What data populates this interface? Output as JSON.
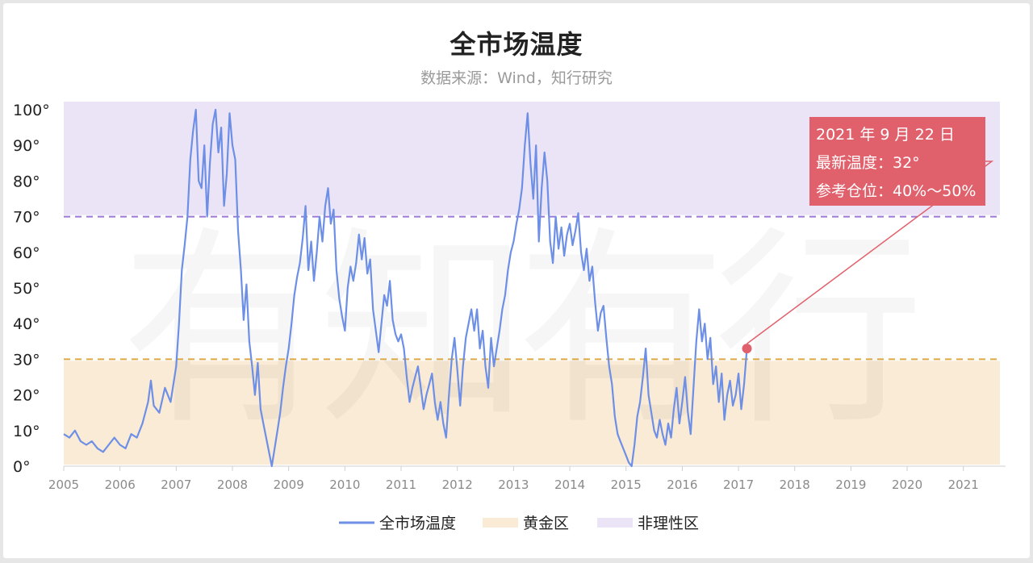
{
  "title": "全市场温度",
  "subtitle": "数据来源：Wind，知行研究",
  "colors": {
    "line": "#6d8fe6",
    "golden_fill": "#faebd6",
    "irrational_fill": "#ebe4f7",
    "line_70": "#9b78d6",
    "line_30": "#e0a640",
    "annotation": "#e0616c"
  },
  "annotation": {
    "date": "2021 年 9 月 22 日",
    "latest": "最新温度：32°",
    "position": "参考仓位：40%～50%"
  },
  "legend": [
    {
      "label": "全市场温度",
      "color": "#6d8fe6",
      "kind": "line"
    },
    {
      "label": "黄金区",
      "color": "#faebd6",
      "kind": "box"
    },
    {
      "label": "非理性区",
      "color": "#ebe4f7",
      "kind": "box"
    }
  ],
  "chart_data": {
    "type": "line",
    "y_ticks": [
      "0°",
      "10°",
      "20°",
      "30°",
      "40°",
      "50°",
      "60°",
      "70°",
      "80°",
      "90°",
      "100°"
    ],
    "ylim": [
      0,
      100
    ],
    "x_ticks": [
      "2005",
      "2006",
      "2007",
      "2008",
      "2009",
      "2010",
      "2011",
      "2012",
      "2013",
      "2014",
      "2015",
      "2016",
      "2017",
      "2018",
      "2019",
      "2020",
      "2021"
    ],
    "xlim": [
      2005,
      2021.75
    ],
    "zones": [
      {
        "name": "黄金区",
        "from": 0,
        "to": 30
      },
      {
        "name": "非理性区",
        "from": 70,
        "to": 100
      }
    ],
    "series": [
      {
        "name": "全市场温度",
        "points": [
          [
            2005.0,
            9
          ],
          [
            2005.1,
            8
          ],
          [
            2005.2,
            10
          ],
          [
            2005.3,
            7
          ],
          [
            2005.4,
            6
          ],
          [
            2005.5,
            7
          ],
          [
            2005.6,
            5
          ],
          [
            2005.7,
            4
          ],
          [
            2005.8,
            6
          ],
          [
            2005.9,
            8
          ],
          [
            2006.0,
            6
          ],
          [
            2006.1,
            5
          ],
          [
            2006.2,
            9
          ],
          [
            2006.3,
            8
          ],
          [
            2006.4,
            12
          ],
          [
            2006.5,
            18
          ],
          [
            2006.55,
            24
          ],
          [
            2006.6,
            17
          ],
          [
            2006.7,
            15
          ],
          [
            2006.8,
            22
          ],
          [
            2006.9,
            18
          ],
          [
            2007.0,
            28
          ],
          [
            2007.05,
            40
          ],
          [
            2007.1,
            55
          ],
          [
            2007.15,
            62
          ],
          [
            2007.2,
            70
          ],
          [
            2007.25,
            86
          ],
          [
            2007.3,
            94
          ],
          [
            2007.35,
            100
          ],
          [
            2007.4,
            80
          ],
          [
            2007.45,
            78
          ],
          [
            2007.5,
            90
          ],
          [
            2007.55,
            70
          ],
          [
            2007.6,
            85
          ],
          [
            2007.65,
            96
          ],
          [
            2007.7,
            100
          ],
          [
            2007.75,
            88
          ],
          [
            2007.8,
            95
          ],
          [
            2007.85,
            73
          ],
          [
            2007.9,
            82
          ],
          [
            2007.95,
            99
          ],
          [
            2008.0,
            90
          ],
          [
            2008.05,
            86
          ],
          [
            2008.1,
            66
          ],
          [
            2008.15,
            55
          ],
          [
            2008.2,
            41
          ],
          [
            2008.25,
            51
          ],
          [
            2008.3,
            35
          ],
          [
            2008.35,
            28
          ],
          [
            2008.4,
            20
          ],
          [
            2008.45,
            29
          ],
          [
            2008.5,
            16
          ],
          [
            2008.55,
            12
          ],
          [
            2008.6,
            8
          ],
          [
            2008.65,
            4
          ],
          [
            2008.7,
            0
          ],
          [
            2008.75,
            5
          ],
          [
            2008.8,
            10
          ],
          [
            2008.85,
            15
          ],
          [
            2008.9,
            22
          ],
          [
            2008.95,
            28
          ],
          [
            2009.0,
            33
          ],
          [
            2009.05,
            40
          ],
          [
            2009.1,
            48
          ],
          [
            2009.15,
            53
          ],
          [
            2009.2,
            57
          ],
          [
            2009.25,
            64
          ],
          [
            2009.3,
            73
          ],
          [
            2009.35,
            55
          ],
          [
            2009.4,
            63
          ],
          [
            2009.45,
            52
          ],
          [
            2009.5,
            60
          ],
          [
            2009.55,
            70
          ],
          [
            2009.6,
            63
          ],
          [
            2009.65,
            73
          ],
          [
            2009.7,
            78
          ],
          [
            2009.75,
            68
          ],
          [
            2009.8,
            72
          ],
          [
            2009.85,
            55
          ],
          [
            2009.9,
            47
          ],
          [
            2009.95,
            42
          ],
          [
            2010.0,
            38
          ],
          [
            2010.05,
            50
          ],
          [
            2010.1,
            56
          ],
          [
            2010.15,
            52
          ],
          [
            2010.2,
            57
          ],
          [
            2010.25,
            65
          ],
          [
            2010.3,
            58
          ],
          [
            2010.35,
            64
          ],
          [
            2010.4,
            54
          ],
          [
            2010.45,
            58
          ],
          [
            2010.5,
            44
          ],
          [
            2010.55,
            38
          ],
          [
            2010.6,
            32
          ],
          [
            2010.65,
            40
          ],
          [
            2010.7,
            48
          ],
          [
            2010.75,
            45
          ],
          [
            2010.8,
            52
          ],
          [
            2010.85,
            41
          ],
          [
            2010.9,
            37
          ],
          [
            2010.95,
            35
          ],
          [
            2011.0,
            37
          ],
          [
            2011.05,
            33
          ],
          [
            2011.1,
            25
          ],
          [
            2011.15,
            18
          ],
          [
            2011.2,
            22
          ],
          [
            2011.25,
            25
          ],
          [
            2011.3,
            28
          ],
          [
            2011.35,
            22
          ],
          [
            2011.4,
            16
          ],
          [
            2011.45,
            20
          ],
          [
            2011.5,
            23
          ],
          [
            2011.55,
            26
          ],
          [
            2011.6,
            18
          ],
          [
            2011.65,
            13
          ],
          [
            2011.7,
            18
          ],
          [
            2011.75,
            12
          ],
          [
            2011.8,
            8
          ],
          [
            2011.85,
            20
          ],
          [
            2011.9,
            30
          ],
          [
            2011.95,
            36
          ],
          [
            2012.0,
            27
          ],
          [
            2012.05,
            17
          ],
          [
            2012.1,
            28
          ],
          [
            2012.15,
            36
          ],
          [
            2012.2,
            40
          ],
          [
            2012.25,
            44
          ],
          [
            2012.3,
            38
          ],
          [
            2012.35,
            44
          ],
          [
            2012.4,
            33
          ],
          [
            2012.45,
            38
          ],
          [
            2012.5,
            28
          ],
          [
            2012.55,
            22
          ],
          [
            2012.6,
            36
          ],
          [
            2012.65,
            28
          ],
          [
            2012.7,
            33
          ],
          [
            2012.75,
            38
          ],
          [
            2012.8,
            44
          ],
          [
            2012.85,
            48
          ],
          [
            2012.9,
            55
          ],
          [
            2012.95,
            60
          ],
          [
            2013.0,
            63
          ],
          [
            2013.05,
            68
          ],
          [
            2013.1,
            72
          ],
          [
            2013.15,
            78
          ],
          [
            2013.2,
            90
          ],
          [
            2013.25,
            99
          ],
          [
            2013.3,
            85
          ],
          [
            2013.35,
            75
          ],
          [
            2013.4,
            90
          ],
          [
            2013.45,
            63
          ],
          [
            2013.5,
            78
          ],
          [
            2013.55,
            88
          ],
          [
            2013.6,
            80
          ],
          [
            2013.65,
            63
          ],
          [
            2013.7,
            57
          ],
          [
            2013.75,
            70
          ],
          [
            2013.8,
            61
          ],
          [
            2013.85,
            67
          ],
          [
            2013.9,
            59
          ],
          [
            2013.95,
            65
          ],
          [
            2014.0,
            68
          ],
          [
            2014.05,
            62
          ],
          [
            2014.1,
            66
          ],
          [
            2014.15,
            71
          ],
          [
            2014.2,
            60
          ],
          [
            2014.25,
            55
          ],
          [
            2014.3,
            61
          ],
          [
            2014.35,
            52
          ],
          [
            2014.4,
            56
          ],
          [
            2014.45,
            46
          ],
          [
            2014.5,
            38
          ],
          [
            2014.55,
            43
          ],
          [
            2014.6,
            45
          ],
          [
            2014.65,
            36
          ],
          [
            2014.7,
            28
          ],
          [
            2014.75,
            23
          ],
          [
            2014.8,
            14
          ],
          [
            2014.85,
            9
          ],
          [
            2014.9,
            7
          ],
          [
            2014.95,
            5
          ],
          [
            2015.0,
            3
          ],
          [
            2015.05,
            1
          ],
          [
            2015.1,
            0
          ],
          [
            2015.15,
            6
          ],
          [
            2015.2,
            14
          ],
          [
            2015.25,
            18
          ],
          [
            2015.3,
            25
          ],
          [
            2015.35,
            33
          ],
          [
            2015.4,
            20
          ],
          [
            2015.45,
            15
          ],
          [
            2015.5,
            10
          ],
          [
            2015.55,
            8
          ],
          [
            2015.6,
            13
          ],
          [
            2015.65,
            9
          ],
          [
            2015.7,
            6
          ],
          [
            2015.75,
            12
          ],
          [
            2015.8,
            8
          ],
          [
            2015.85,
            16
          ],
          [
            2015.9,
            22
          ],
          [
            2015.95,
            12
          ],
          [
            2016.0,
            18
          ],
          [
            2016.05,
            25
          ],
          [
            2016.1,
            15
          ],
          [
            2016.15,
            9
          ],
          [
            2016.2,
            22
          ],
          [
            2016.25,
            35
          ],
          [
            2016.3,
            44
          ],
          [
            2016.35,
            35
          ],
          [
            2016.4,
            40
          ],
          [
            2016.45,
            30
          ],
          [
            2016.5,
            36
          ],
          [
            2016.55,
            23
          ],
          [
            2016.6,
            28
          ],
          [
            2016.65,
            18
          ],
          [
            2016.7,
            26
          ],
          [
            2016.75,
            13
          ],
          [
            2016.8,
            20
          ],
          [
            2016.85,
            24
          ],
          [
            2016.9,
            17
          ],
          [
            2016.95,
            20
          ],
          [
            2017.0,
            26
          ],
          [
            2017.05,
            16
          ],
          [
            2017.1,
            23
          ],
          [
            2017.15,
            33
          ]
        ]
      }
    ]
  }
}
